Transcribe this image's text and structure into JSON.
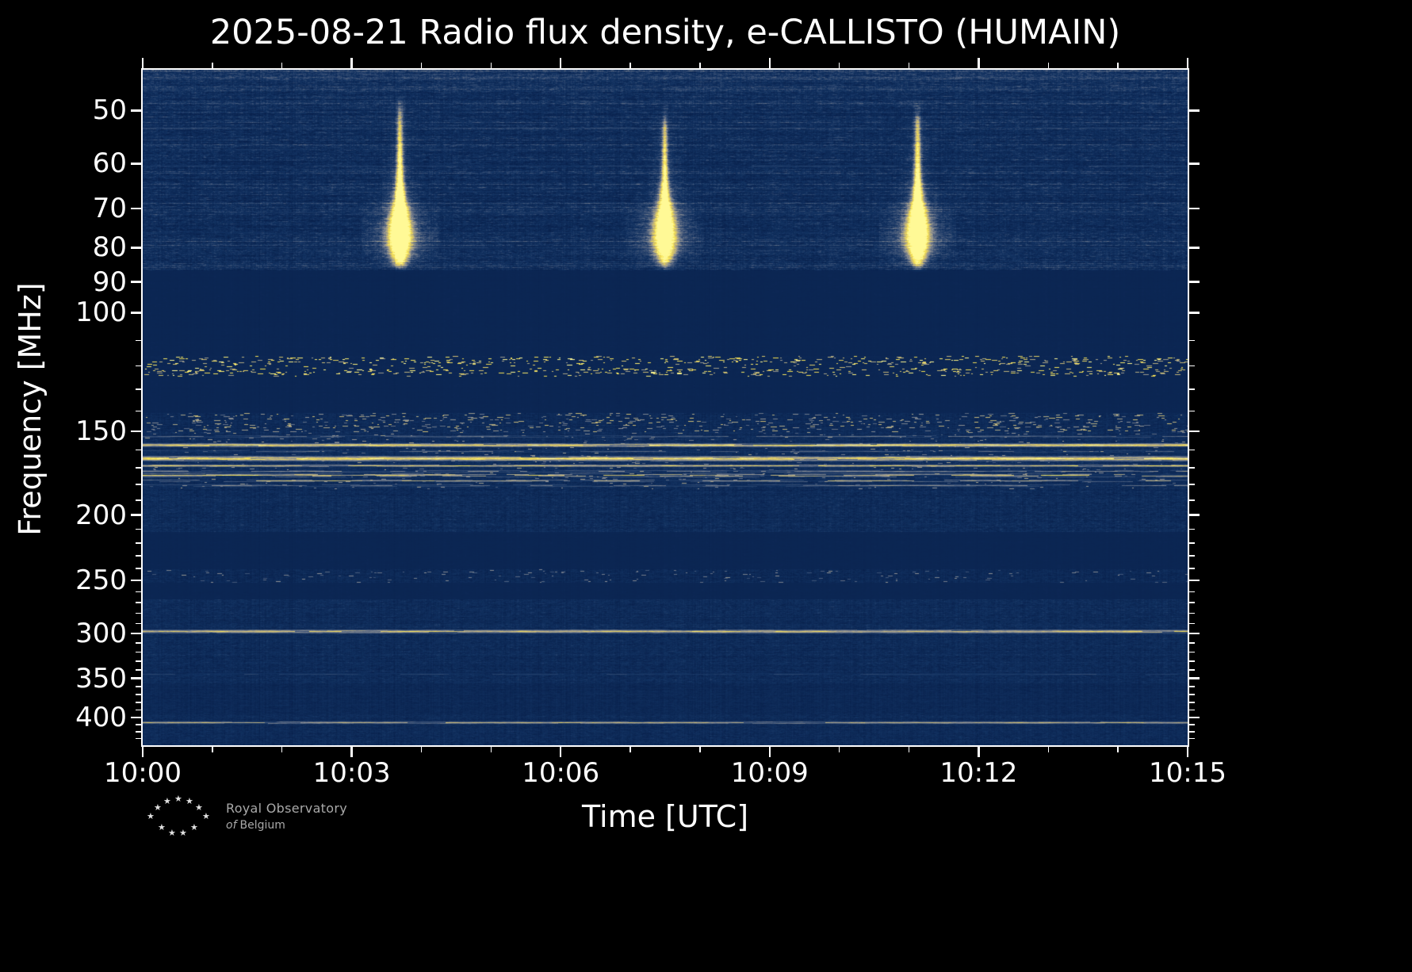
{
  "logo": {
    "line1": "Royal Observatory",
    "line2_italic": "of",
    "line2_rest": "Belgium"
  },
  "colors": {
    "background": "#000000",
    "frame": "#ffffff",
    "text": "#ffffff",
    "logo_text": "#a9a9a9",
    "logo_stars": "#e0e0e0"
  },
  "chart_data": {
    "type": "heatmap",
    "title": "2025-08-21 Radio flux density, e-CALLISTO (HUMAIN)",
    "date": "2025-08-21",
    "instrument": "e-CALLISTO (HUMAIN)",
    "xlabel": "Time [UTC]",
    "ylabel": "Frequency [MHz]",
    "x_axis": {
      "start": "10:00",
      "end": "10:15",
      "duration_min": 15,
      "major_tick_labels": [
        "10:00",
        "10:03",
        "10:06",
        "10:09",
        "10:12",
        "10:15"
      ],
      "major_tick_minutes": [
        0,
        3,
        6,
        9,
        12,
        15
      ],
      "minor_tick_minutes": [
        1,
        2,
        4,
        5,
        7,
        8,
        10,
        11,
        13,
        14
      ]
    },
    "y_axis": {
      "scale": "log",
      "unit": "MHz",
      "fmin_mhz": 43.5,
      "fmax_mhz": 440,
      "major_ticks_mhz": [
        50,
        60,
        70,
        80,
        90,
        100,
        150,
        200,
        250,
        300,
        350,
        400
      ],
      "minor_ticks_mhz": [
        110,
        120,
        130,
        140,
        160,
        170,
        180,
        190,
        210,
        220,
        230,
        240,
        260,
        270,
        280,
        290,
        310,
        320,
        330,
        340,
        360,
        370,
        380,
        390,
        410,
        420,
        430
      ]
    },
    "colormap": {
      "style": "dark-navy to grey to yellow (cividis-like)",
      "stops": [
        [
          0.0,
          9,
          34,
          78
        ],
        [
          0.2,
          18,
          50,
          97
        ],
        [
          0.38,
          64,
          85,
          120
        ],
        [
          0.56,
          140,
          143,
          147
        ],
        [
          0.74,
          205,
          188,
          115
        ],
        [
          0.87,
          247,
          226,
          80
        ],
        [
          1.0,
          255,
          249,
          150
        ]
      ]
    },
    "bursts": [
      {
        "label": "solar radio burst",
        "time_utc": "10:03:41",
        "time_min": 3.69,
        "f_peak_mhz": 76,
        "f_range_mhz": [
          47,
          87
        ],
        "intensity": 1.05
      },
      {
        "label": "solar radio burst",
        "time_utc": "10:07:29",
        "time_min": 7.49,
        "f_peak_mhz": 76,
        "f_range_mhz": [
          49,
          87
        ],
        "intensity": 0.9
      },
      {
        "label": "solar radio burst",
        "time_utc": "10:11:07",
        "time_min": 11.12,
        "f_peak_mhz": 76,
        "f_range_mhz": [
          48,
          87
        ],
        "intensity": 1.0
      }
    ],
    "bands": [
      {
        "f0": 43.4,
        "f1": 86.5,
        "base": 0.13,
        "noise": 0.2,
        "jitter": 0.05,
        "streaky": true
      },
      {
        "f0": 86.5,
        "f1": 116,
        "base": 0.055,
        "noise": 0.018,
        "jitter": 0.004
      },
      {
        "f0": 116,
        "f1": 124.5,
        "base": 0.06,
        "noise": 0.03,
        "jitter": 0.01,
        "dash": {
          "density": 0.012,
          "len": 6,
          "v": 0.95,
          "rows": [
            118,
            122.5
          ]
        }
      },
      {
        "f0": 124.5,
        "f1": 141,
        "base": 0.055,
        "noise": 0.018,
        "jitter": 0.004
      },
      {
        "f0": 141,
        "f1": 150.5,
        "base": 0.11,
        "noise": 0.13,
        "jitter": 0.03,
        "dash": {
          "density": 0.02,
          "len": 7,
          "v": 0.7
        }
      },
      {
        "f0": 150.5,
        "f1": 183,
        "base": 0.13,
        "noise": 0.15,
        "jitter": 0.03,
        "dash": {
          "density": 0.006,
          "len": 5,
          "v": 0.6
        }
      },
      {
        "f0": 183,
        "f1": 212,
        "base": 0.12,
        "noise": 0.16,
        "jitter": 0.03
      },
      {
        "f0": 212,
        "f1": 241,
        "base": 0.055,
        "noise": 0.018,
        "jitter": 0.004
      },
      {
        "f0": 241,
        "f1": 252,
        "base": 0.1,
        "noise": 0.13,
        "jitter": 0.03,
        "dash": {
          "density": 0.008,
          "len": 5,
          "v": 0.55
        }
      },
      {
        "f0": 252,
        "f1": 267,
        "base": 0.055,
        "noise": 0.018,
        "jitter": 0.004
      },
      {
        "f0": 267,
        "f1": 356,
        "base": 0.12,
        "noise": 0.15,
        "jitter": 0.03
      },
      {
        "f0": 356,
        "f1": 396,
        "base": 0.085,
        "noise": 0.1,
        "jitter": 0.02
      },
      {
        "f0": 396,
        "f1": 440.5,
        "base": 0.11,
        "noise": 0.14,
        "jitter": 0.025
      }
    ],
    "rfi_lines": [
      {
        "f_mhz": 53,
        "v": 0.3,
        "halfw": 1,
        "broken": true
      },
      {
        "f_mhz": 57,
        "v": 0.24,
        "halfw": 1,
        "broken": true
      },
      {
        "f_mhz": 60.5,
        "v": 0.28,
        "halfw": 1,
        "broken": true
      },
      {
        "f_mhz": 66,
        "v": 0.22,
        "halfw": 1,
        "broken": true
      },
      {
        "f_mhz": 71,
        "v": 0.25,
        "halfw": 1,
        "broken": true
      },
      {
        "f_mhz": 76,
        "v": 0.22,
        "halfw": 1,
        "broken": true
      },
      {
        "f_mhz": 80,
        "v": 0.24,
        "halfw": 1,
        "broken": true
      },
      {
        "f_mhz": 152.5,
        "v": 0.5,
        "halfw": 1,
        "broken": true
      },
      {
        "f_mhz": 157.3,
        "v": 0.93,
        "halfw": 2,
        "broken": false
      },
      {
        "f_mhz": 160.5,
        "v": 0.45,
        "halfw": 1,
        "broken": true
      },
      {
        "f_mhz": 164.5,
        "v": 0.99,
        "halfw": 3,
        "broken": false
      },
      {
        "f_mhz": 168.5,
        "v": 0.8,
        "halfw": 1,
        "broken": false
      },
      {
        "f_mhz": 172,
        "v": 0.6,
        "halfw": 1,
        "broken": true
      },
      {
        "f_mhz": 174.5,
        "v": 0.85,
        "halfw": 2,
        "broken": true
      },
      {
        "f_mhz": 177.5,
        "v": 0.7,
        "halfw": 1,
        "broken": true
      },
      {
        "f_mhz": 180.5,
        "v": 0.55,
        "halfw": 1,
        "broken": true
      },
      {
        "f_mhz": 297.5,
        "v": 0.8,
        "halfw": 2,
        "broken": false
      },
      {
        "f_mhz": 345,
        "v": 0.3,
        "halfw": 1,
        "broken": true
      },
      {
        "f_mhz": 407,
        "v": 0.72,
        "halfw": 1,
        "broken": false
      }
    ]
  }
}
